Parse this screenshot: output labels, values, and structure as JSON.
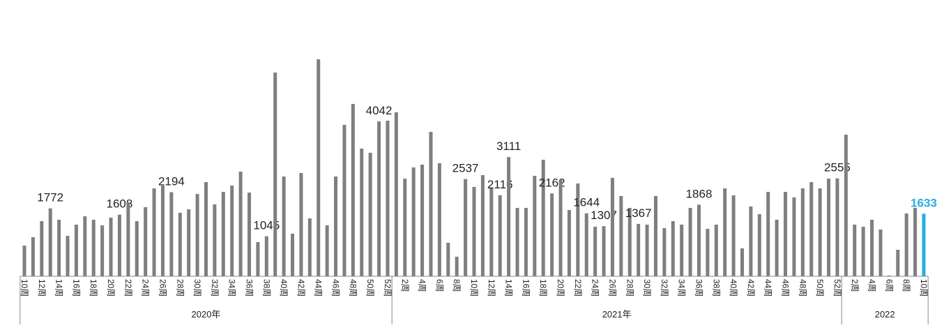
{
  "chart_data": {
    "type": "bar",
    "color": "#7f7f7f",
    "highlight_color": "#29abe2",
    "ylim": [
      0,
      5800
    ],
    "groups": [
      {
        "label": "2020年",
        "categories": [
          "10周",
          null,
          "12周",
          null,
          "14周",
          null,
          "16周",
          null,
          "18周",
          null,
          "20周",
          null,
          "22周",
          null,
          "24周",
          null,
          "26周",
          null,
          "28周",
          null,
          "30周",
          null,
          "32周",
          null,
          "34周",
          null,
          "36周",
          null,
          "38周",
          null,
          "40周",
          null,
          "42周",
          null,
          "44周",
          null,
          "46周",
          null,
          "48周",
          null,
          "50周",
          null,
          "52周"
        ],
        "values": [
          801,
          1020,
          1439,
          1772,
          1475,
          1056,
          1348,
          1566,
          1475,
          1329,
          1530,
          1608,
          1930,
          1439,
          1803,
          2294,
          2367,
          2194,
          1657,
          1748,
          2149,
          2458,
          1876,
          2203,
          2367,
          2731,
          2185,
          892,
          1045,
          5317,
          2604,
          1111,
          2695,
          1511,
          5663,
          1329,
          2604,
          3951,
          4498,
          3332,
          3223,
          4042,
          4061
        ],
        "value_labels": [
          null,
          null,
          null,
          "1772",
          null,
          null,
          null,
          null,
          null,
          null,
          null,
          "1608",
          null,
          null,
          null,
          null,
          null,
          "2194",
          null,
          null,
          null,
          null,
          null,
          null,
          null,
          null,
          null,
          null,
          "1045",
          null,
          null,
          null,
          null,
          null,
          null,
          null,
          null,
          null,
          null,
          null,
          null,
          "4042",
          null
        ]
      },
      {
        "label": "2021年",
        "categories": [
          null,
          "2周",
          null,
          "4周",
          null,
          "6周",
          null,
          "8周",
          null,
          "10周",
          null,
          "12周",
          null,
          "14周",
          null,
          "16周",
          null,
          "18周",
          null,
          "20周",
          null,
          "22周",
          null,
          "24周",
          null,
          "26周",
          null,
          "28周",
          null,
          "30周",
          null,
          "32周",
          null,
          "34周",
          null,
          "36周",
          null,
          "38周",
          null,
          "40周",
          null,
          "42周",
          null,
          "44周",
          null,
          "46周",
          null,
          "48周",
          null,
          "50周",
          null,
          "52周"
        ],
        "values": [
          4279,
          2549,
          2841,
          2914,
          3769,
          2950,
          874,
          510,
          2537,
          2331,
          2640,
          2294,
          2116,
          3111,
          1785,
          1785,
          2622,
          3041,
          2162,
          2513,
          1730,
          2422,
          1644,
          1293,
          1307,
          2568,
          2094,
          1785,
          1367,
          1348,
          2094,
          1256,
          1439,
          1348,
          1785,
          1868,
          1238,
          1348,
          2294,
          2112,
          728,
          1821,
          1621,
          2203,
          1475,
          2203,
          2058,
          2294,
          2458,
          2294,
          2549,
          2555
        ],
        "value_labels": [
          null,
          null,
          null,
          null,
          null,
          null,
          null,
          null,
          "2537",
          null,
          null,
          null,
          "2116",
          "3111",
          null,
          null,
          null,
          null,
          "2162",
          null,
          null,
          null,
          "1644",
          null,
          "1307",
          null,
          null,
          null,
          "1367",
          null,
          null,
          null,
          null,
          null,
          null,
          "1868",
          null,
          null,
          null,
          null,
          null,
          null,
          null,
          null,
          null,
          null,
          null,
          null,
          null,
          null,
          null,
          "2555"
        ]
      },
      {
        "label": "2022",
        "categories": [
          null,
          "2周",
          null,
          "4周",
          null,
          "6周",
          null,
          "8周",
          null,
          "10周"
        ],
        "values": [
          3696,
          1348,
          1293,
          1475,
          1220,
          20,
          692,
          1639,
          1785,
          1633
        ],
        "value_labels": [
          null,
          null,
          null,
          null,
          null,
          null,
          null,
          null,
          null,
          "1633"
        ]
      }
    ]
  }
}
